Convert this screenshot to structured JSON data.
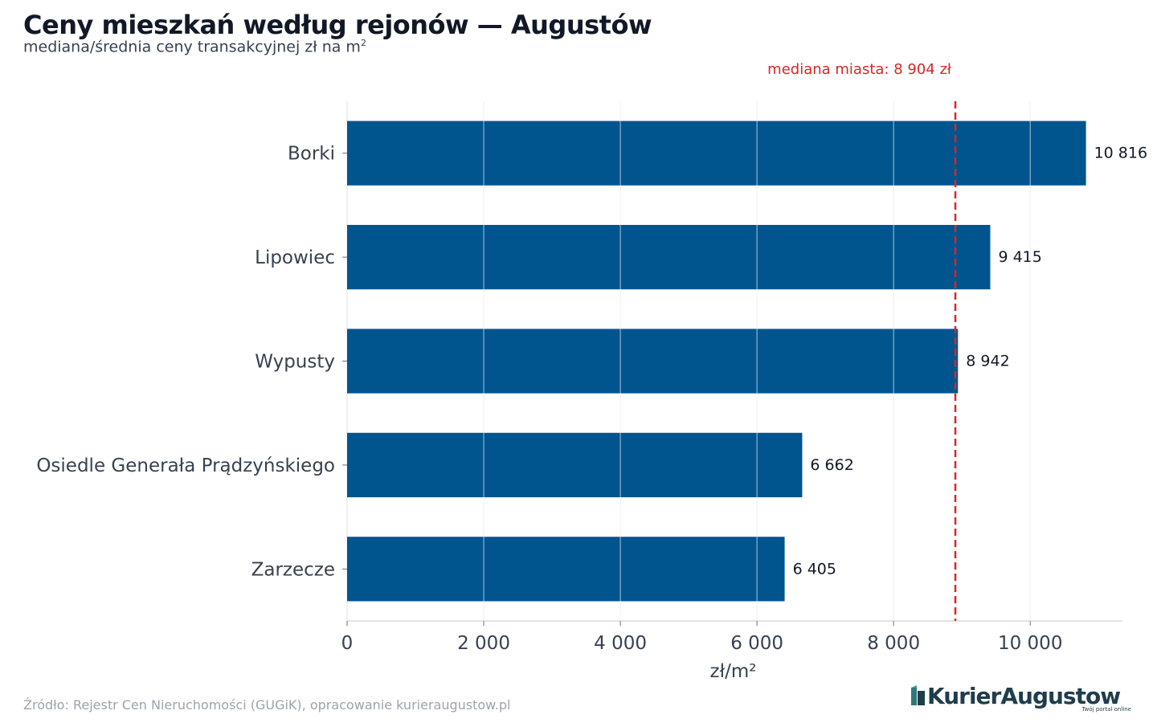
{
  "header": {
    "title": "Ceny mieszkań według rejonów — Augustów",
    "subtitle": "mediana/średnia ceny transakcyjnej zł na m",
    "subtitle_sup": "2"
  },
  "chart_data": {
    "type": "bar",
    "orientation": "horizontal",
    "categories": [
      "Borki",
      "Lipowiec",
      "Wypusty",
      "Osiedle Generała Prądzyńskiego",
      "Zarzecze"
    ],
    "values": [
      10816,
      9415,
      8942,
      6662,
      6405
    ],
    "value_labels": [
      "10 816",
      "9 415",
      "8 942",
      "6 662",
      "6 405"
    ],
    "xlabel": "zł/m²",
    "xlim": [
      0,
      11350
    ],
    "xticks": [
      0,
      2000,
      4000,
      6000,
      8000,
      10000
    ],
    "xtick_labels": [
      "0",
      "2 000",
      "4 000",
      "6 000",
      "8 000",
      "10 000"
    ],
    "grid": "vertical",
    "bar_color": "#00558f",
    "reference_line": {
      "value": 8904,
      "label": "mediana miasta: 8 904 zł",
      "color": "#d62728",
      "style": "dashed"
    }
  },
  "footer": {
    "source": "Źródło: Rejestr Cen Nieruchomości (GUGiK), opracowanie kurieraugustow.pl"
  },
  "logo": {
    "name": "KurierAugustow",
    "tagline": "Twój portal online"
  }
}
